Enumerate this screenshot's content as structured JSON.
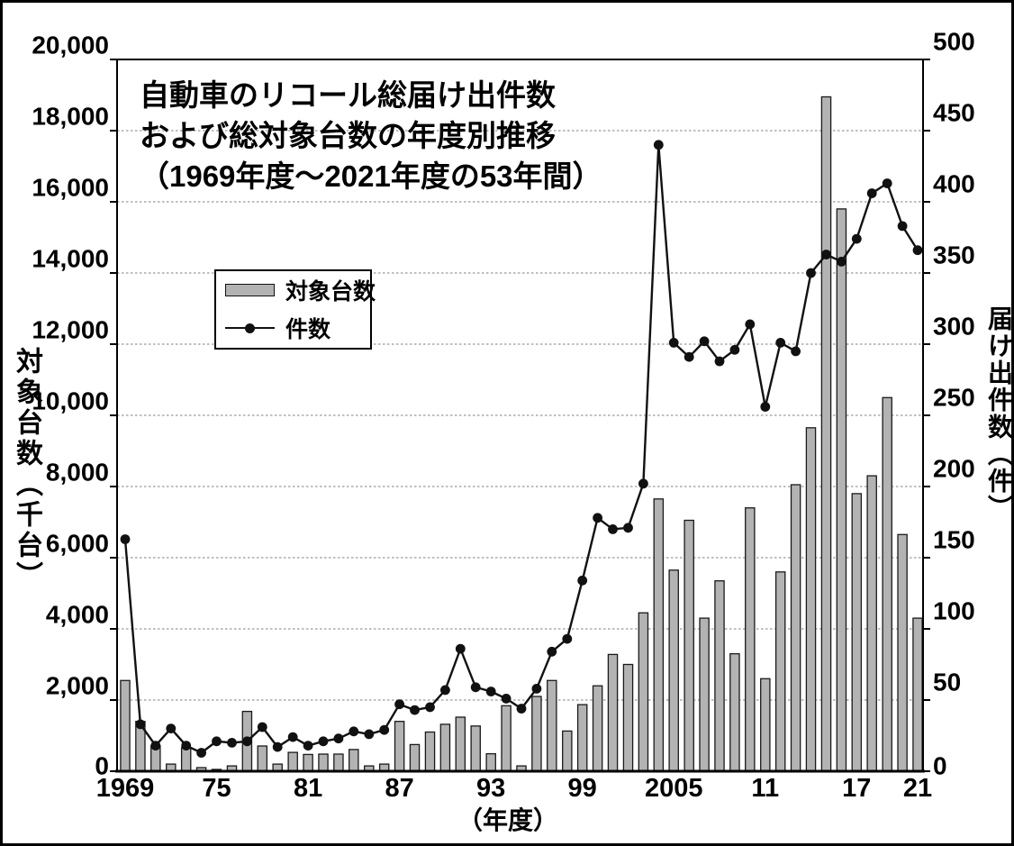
{
  "figure": {
    "title_lines": [
      "自動車のリコール総届け出件数",
      "および総対象台数の年度別推移",
      "（1969年度～2021年度の53年間）"
    ],
    "legend": {
      "bar_label": "対象台数",
      "line_label": "件数"
    },
    "left_axis_title": "対象台数（千台）",
    "right_axis_title": "届け出件数（件）",
    "x_axis_title": "（年度）"
  },
  "chart_data": {
    "type": "bar+line combo",
    "x": [
      1969,
      1970,
      1971,
      1972,
      1973,
      1974,
      1975,
      1976,
      1977,
      1978,
      1979,
      1980,
      1981,
      1982,
      1983,
      1984,
      1985,
      1986,
      1987,
      1988,
      1989,
      1990,
      1991,
      1992,
      1993,
      1994,
      1995,
      1996,
      1997,
      1998,
      1999,
      2000,
      2001,
      2002,
      2003,
      2004,
      2005,
      2006,
      2007,
      2008,
      2009,
      2010,
      2011,
      2012,
      2013,
      2014,
      2015,
      2016,
      2017,
      2018,
      2019,
      2020,
      2021
    ],
    "x_tick_labels": [
      {
        "year": 1969,
        "label": "1969"
      },
      {
        "year": 1975,
        "label": "75"
      },
      {
        "year": 1981,
        "label": "81"
      },
      {
        "year": 1987,
        "label": "87"
      },
      {
        "year": 1993,
        "label": "93"
      },
      {
        "year": 1999,
        "label": "99"
      },
      {
        "year": 2005,
        "label": "2005"
      },
      {
        "year": 2011,
        "label": "11"
      },
      {
        "year": 2017,
        "label": "17"
      },
      {
        "year": 2021,
        "label": "21"
      }
    ],
    "left_axis": {
      "label": "対象台数（千台）",
      "min": 0,
      "max": 20000,
      "step": 2000,
      "tick_labels": [
        "0",
        "2,000",
        "4,000",
        "6,000",
        "8,000",
        "10,000",
        "12,000",
        "14,000",
        "16,000",
        "18,000",
        "20,000"
      ]
    },
    "right_axis": {
      "label": "届け出件数（件）",
      "min": 0,
      "max": 500,
      "step": 50,
      "tick_labels": [
        "0",
        "50",
        "100",
        "150",
        "200",
        "250",
        "300",
        "350",
        "400",
        "450",
        "500"
      ]
    },
    "series": [
      {
        "name": "対象台数",
        "type": "bar",
        "axis": "left",
        "unit": "千台",
        "values": [
          2550,
          1400,
          720,
          200,
          660,
          100,
          50,
          150,
          1680,
          710,
          200,
          530,
          470,
          480,
          480,
          610,
          150,
          200,
          1400,
          750,
          1100,
          1320,
          1520,
          1270,
          490,
          1840,
          150,
          2100,
          2550,
          1130,
          1870,
          2400,
          3280,
          3000,
          4450,
          7650,
          5650,
          7050,
          4300,
          5350,
          3300,
          7400,
          2600,
          5600,
          8050,
          9650,
          18950,
          15800,
          7800,
          8300,
          10500,
          6650,
          4300
        ]
      },
      {
        "name": "件数",
        "type": "line",
        "axis": "right",
        "unit": "件",
        "values": [
          163,
          33,
          18,
          30,
          18,
          13,
          21,
          20,
          21,
          31,
          17,
          24,
          18,
          21,
          23,
          28,
          26,
          29,
          47,
          43,
          45,
          57,
          86,
          59,
          56,
          51,
          44,
          58,
          84,
          93,
          134,
          178,
          170,
          171,
          202,
          440,
          301,
          291,
          302,
          288,
          296,
          314,
          256,
          301,
          295,
          350,
          363,
          358,
          374,
          406,
          413,
          383,
          366
        ]
      }
    ],
    "grid": "horizontal dotted lines every 2000 (left axis) / 50 (right axis)",
    "legend_position": "upper-left inside plot",
    "colors": {
      "bar_fill": "#b3b3b3",
      "bar_stroke": "#1a1a1a",
      "line": "#111111",
      "grid": "#999999",
      "text": "#000000",
      "background": "#ffffff"
    }
  }
}
